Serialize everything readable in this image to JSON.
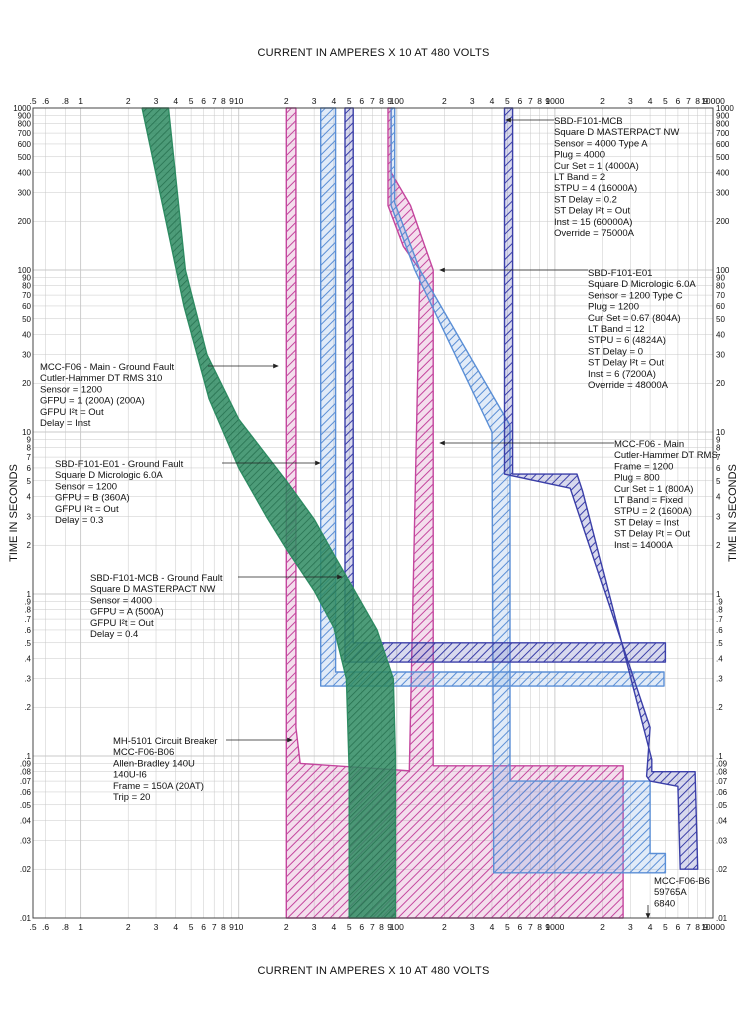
{
  "chart_data": {
    "type": "line",
    "title_top": "CURRENT IN AMPERES X 10 AT 480 VOLTS",
    "title_bottom": "CURRENT IN AMPERES X 10 AT 480 VOLTS",
    "xlabel": "CURRENT IN AMPERES X 10 AT 480 VOLTS",
    "ylabel": "TIME IN SECONDS",
    "x_scale": "log",
    "y_scale": "log",
    "xlim": [
      0.5,
      10000
    ],
    "ylim": [
      0.01,
      1000
    ],
    "grid": true,
    "x_ticks": [
      {
        "v": 0.5,
        "t": ".5"
      },
      {
        "v": 0.6,
        "t": ".6"
      },
      {
        "v": 0.8,
        "t": ".8"
      },
      {
        "v": 1,
        "t": "1"
      },
      {
        "v": 2,
        "t": "2"
      },
      {
        "v": 3,
        "t": "3"
      },
      {
        "v": 4,
        "t": "4"
      },
      {
        "v": 5,
        "t": "5"
      },
      {
        "v": 6,
        "t": "6"
      },
      {
        "v": 7,
        "t": "7"
      },
      {
        "v": 8,
        "t": "8"
      },
      {
        "v": 9,
        "t": "9"
      },
      {
        "v": 10,
        "t": "10"
      },
      {
        "v": 20,
        "t": "2"
      },
      {
        "v": 30,
        "t": "3"
      },
      {
        "v": 40,
        "t": "4"
      },
      {
        "v": 50,
        "t": "5"
      },
      {
        "v": 60,
        "t": "6"
      },
      {
        "v": 70,
        "t": "7"
      },
      {
        "v": 80,
        "t": "8"
      },
      {
        "v": 90,
        "t": "9"
      },
      {
        "v": 100,
        "t": "100"
      },
      {
        "v": 200,
        "t": "2"
      },
      {
        "v": 300,
        "t": "3"
      },
      {
        "v": 400,
        "t": "4"
      },
      {
        "v": 500,
        "t": "5"
      },
      {
        "v": 600,
        "t": "6"
      },
      {
        "v": 700,
        "t": "7"
      },
      {
        "v": 800,
        "t": "8"
      },
      {
        "v": 900,
        "t": "9"
      },
      {
        "v": 1000,
        "t": "1000"
      },
      {
        "v": 2000,
        "t": "2"
      },
      {
        "v": 3000,
        "t": "3"
      },
      {
        "v": 4000,
        "t": "4"
      },
      {
        "v": 5000,
        "t": "5"
      },
      {
        "v": 6000,
        "t": "6"
      },
      {
        "v": 7000,
        "t": "7"
      },
      {
        "v": 8000,
        "t": "8"
      },
      {
        "v": 9000,
        "t": "9"
      },
      {
        "v": 10000,
        "t": "10000"
      }
    ],
    "y_ticks": [
      {
        "v": 1000,
        "t": "1000"
      },
      {
        "v": 900,
        "t": "900"
      },
      {
        "v": 800,
        "t": "800"
      },
      {
        "v": 700,
        "t": "700"
      },
      {
        "v": 600,
        "t": "600"
      },
      {
        "v": 500,
        "t": "500"
      },
      {
        "v": 400,
        "t": "400"
      },
      {
        "v": 300,
        "t": "300"
      },
      {
        "v": 200,
        "t": "200"
      },
      {
        "v": 100,
        "t": "100"
      },
      {
        "v": 90,
        "t": "90"
      },
      {
        "v": 80,
        "t": "80"
      },
      {
        "v": 70,
        "t": "70"
      },
      {
        "v": 60,
        "t": "60"
      },
      {
        "v": 50,
        "t": "50"
      },
      {
        "v": 40,
        "t": "40"
      },
      {
        "v": 30,
        "t": "30"
      },
      {
        "v": 20,
        "t": "20"
      },
      {
        "v": 10,
        "t": "10"
      },
      {
        "v": 9,
        "t": "9"
      },
      {
        "v": 8,
        "t": "8"
      },
      {
        "v": 7,
        "t": "7"
      },
      {
        "v": 6,
        "t": "6"
      },
      {
        "v": 5,
        "t": "5"
      },
      {
        "v": 4,
        "t": "4"
      },
      {
        "v": 3,
        "t": "3"
      },
      {
        "v": 2,
        "t": "2"
      },
      {
        "v": 1,
        "t": "1"
      },
      {
        "v": 0.9,
        "t": ".9"
      },
      {
        "v": 0.8,
        "t": ".8"
      },
      {
        "v": 0.7,
        "t": ".7"
      },
      {
        "v": 0.6,
        "t": ".6"
      },
      {
        "v": 0.5,
        "t": ".5"
      },
      {
        "v": 0.4,
        "t": ".4"
      },
      {
        "v": 0.3,
        "t": ".3"
      },
      {
        "v": 0.2,
        "t": ".2"
      },
      {
        "v": 0.1,
        "t": ".1"
      },
      {
        "v": 0.09,
        "t": ".09"
      },
      {
        "v": 0.08,
        "t": ".08"
      },
      {
        "v": 0.07,
        "t": ".07"
      },
      {
        "v": 0.06,
        "t": ".06"
      },
      {
        "v": 0.05,
        "t": ".05"
      },
      {
        "v": 0.04,
        "t": ".04"
      },
      {
        "v": 0.03,
        "t": ".03"
      },
      {
        "v": 0.02,
        "t": ".02"
      },
      {
        "v": 0.01,
        "t": ".01"
      }
    ],
    "colors": {
      "green": "#2e8b62",
      "magenta": "#c4469e",
      "light_blue": "#5b8fd6",
      "dark_blue": "#3b3fa8",
      "grid": "#c8c8c8"
    },
    "series": [
      {
        "name": "MH-5101 Circuit Breaker",
        "style": "green",
        "band": [
          [
            2.45,
            1000
          ],
          [
            3.6,
            1000
          ],
          [
            4.6,
            100
          ],
          [
            6.3,
            30
          ],
          [
            10,
            12
          ],
          [
            20,
            5
          ],
          [
            30,
            2.9
          ],
          [
            40,
            1.75
          ],
          [
            55,
            1.02
          ],
          [
            75,
            0.6
          ],
          [
            95,
            0.3
          ],
          [
            98,
            0.1
          ],
          [
            98,
            0.01
          ],
          [
            50,
            0.01
          ],
          [
            50,
            0.08
          ],
          [
            48,
            0.3
          ],
          [
            40,
            0.62
          ],
          [
            30,
            1.05
          ],
          [
            20,
            1.9
          ],
          [
            15,
            3
          ],
          [
            10,
            6
          ],
          [
            6.5,
            16
          ],
          [
            4.5,
            60
          ],
          [
            2.45,
            1000
          ]
        ]
      },
      {
        "name": "MCC-F06 - Main",
        "style": "magenta",
        "band": [
          [
            88,
            1000
          ],
          [
            92,
            1000
          ],
          [
            92,
            400
          ],
          [
            122,
            250
          ],
          [
            170,
            100
          ],
          [
            170,
            0.087
          ],
          [
            2700,
            0.087
          ],
          [
            2700,
            0.01
          ],
          [
            20,
            0.01
          ],
          [
            20,
            1000
          ],
          [
            23,
            1000
          ],
          [
            23,
            0.15
          ],
          [
            24.5,
            0.09
          ],
          [
            120,
            0.081
          ],
          [
            120,
            0.08
          ],
          [
            140,
            100
          ],
          [
            110,
            140
          ],
          [
            88,
            250
          ],
          [
            88,
            1000
          ]
        ]
      },
      {
        "name": "SBD-F101-E01",
        "style": "light_blue",
        "band": [
          [
            92,
            1000
          ],
          [
            97,
            1000
          ],
          [
            97,
            260
          ],
          [
            140,
            100
          ],
          [
            520,
            11
          ],
          [
            520,
            0.07
          ],
          [
            4000,
            0.07
          ],
          [
            4000,
            0.025
          ],
          [
            5000,
            0.025
          ],
          [
            5000,
            0.019
          ],
          [
            410,
            0.019
          ],
          [
            410,
            0.022
          ],
          [
            400,
            10
          ],
          [
            130,
            100
          ],
          [
            92,
            250
          ],
          [
            92,
            1000
          ]
        ]
      },
      {
        "name": "SBD-F101-E01 - Ground Fault",
        "style": "light_blue",
        "band": [
          [
            36,
            1000
          ],
          [
            41,
            1000
          ],
          [
            41,
            0.33
          ],
          [
            4900,
            0.33
          ],
          [
            4900,
            0.27
          ],
          [
            33,
            0.27
          ],
          [
            33,
            1000
          ]
        ]
      },
      {
        "name": "SBD-F101-MCB - Ground Fault",
        "style": "dark_blue",
        "band": [
          [
            47,
            1000
          ],
          [
            53,
            1000
          ],
          [
            53,
            0.5
          ],
          [
            5000,
            0.5
          ],
          [
            5000,
            0.38
          ],
          [
            47,
            0.38
          ],
          [
            47,
            1000
          ]
        ]
      },
      {
        "name": "SBD-F101-MCB",
        "style": "dark_blue",
        "band": [
          [
            480,
            1000
          ],
          [
            540,
            1000
          ],
          [
            540,
            5.5
          ],
          [
            1380,
            5.5
          ],
          [
            1500,
            4.3
          ],
          [
            4100,
            0.095
          ],
          [
            4100,
            0.08
          ],
          [
            7700,
            0.08
          ],
          [
            8000,
            0.02
          ],
          [
            6200,
            0.02
          ],
          [
            6000,
            0.065
          ],
          [
            4000,
            0.07
          ],
          [
            3800,
            0.075
          ],
          [
            4000,
            0.15
          ],
          [
            1250,
            4.5
          ],
          [
            480,
            5.5
          ],
          [
            480,
            1000
          ]
        ]
      }
    ],
    "annotations": [
      {
        "lines": [
          "SBD-F101-MCB",
          "Square D MASTERPACT NW",
          "Sensor = 4000 Type A",
          "Plug = 4000",
          "Cur Set = 1 (4000A)",
          "LT Band = 2",
          "STPU = 4 (16000A)",
          "ST Delay = 0.2",
          "ST Delay I²t = Out",
          "Inst = 15 (60000A)",
          "Override = 75000A"
        ]
      },
      {
        "lines": [
          "SBD-F101-E01",
          "Square D Micrologic 6.0A",
          "Sensor = 1200 Type C",
          "Plug = 1200",
          "Cur Set = 0.67 (804A)",
          "LT Band = 12",
          "STPU = 6 (4824A)",
          "ST Delay = 0",
          "ST Delay I²t = Out",
          "Inst = 6 (7200A)",
          "Override = 48000A"
        ]
      },
      {
        "lines": [
          "MCC-F06 - Main",
          "Cutler-Hammer DT RMS",
          "Frame = 1200",
          "Plug = 800",
          "Cur Set = 1 (800A)",
          "LT Band = Fixed",
          "STPU = 2 (1600A)",
          "ST Delay = Inst",
          "ST Delay I²t = Out",
          "Inst = 14000A"
        ]
      },
      {
        "lines": [
          "MCC-F06 - Main - Ground Fault",
          "Cutler-Hammer DT RMS 310",
          "Sensor = 1200",
          "GFPU = 1 (200A) (200A)",
          "GFPU I²t = Out",
          "Delay = Inst"
        ]
      },
      {
        "lines": [
          "SBD-F101-E01 - Ground Fault",
          "Square D Micrologic 6.0A",
          "Sensor = 1200",
          "GFPU = B (360A)",
          "GFPU I²t = Out",
          "Delay = 0.3"
        ]
      },
      {
        "lines": [
          "SBD-F101-MCB - Ground Fault",
          "Square D MASTERPACT NW",
          "Sensor = 4000",
          "GFPU = A (500A)",
          "GFPU I²t = Out",
          "Delay = 0.4"
        ]
      },
      {
        "lines": [
          "MH-5101 Circuit Breaker",
          "MCC-F06-B06",
          "Allen-Bradley 140U",
          "140U-I6",
          "Frame = 150A (20AT)",
          "Trip = 20"
        ]
      },
      {
        "lines": [
          "MCC-F06-B6",
          "59765A",
          "6840"
        ]
      }
    ]
  }
}
